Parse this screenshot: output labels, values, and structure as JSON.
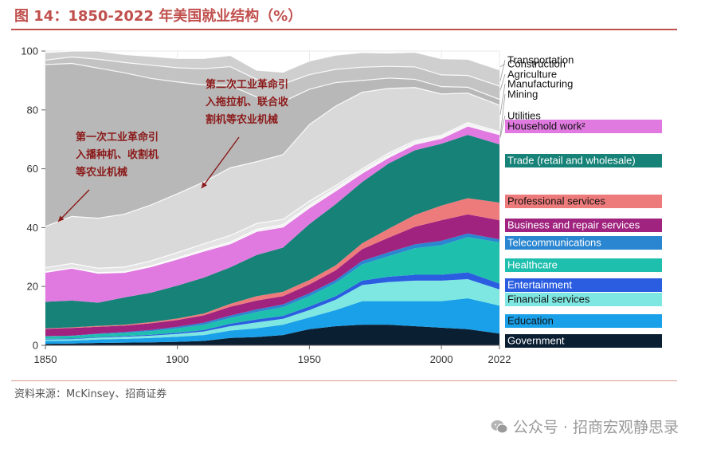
{
  "header": {
    "figure_title": "图 14：1850-2022 年美国就业结构（%）"
  },
  "footer": {
    "source": "资料来源：McKinsey、招商证券",
    "watermark": "公众号 · 招商宏观静思录"
  },
  "chart_data": {
    "type": "area",
    "stacked": true,
    "x": [
      1850,
      1860,
      1870,
      1880,
      1890,
      1900,
      1910,
      1920,
      1930,
      1940,
      1950,
      1960,
      1970,
      1980,
      1990,
      2000,
      2010,
      2022
    ],
    "xticks": [
      "1850",
      "1900",
      "1950",
      "2000",
      "2022"
    ],
    "ylim": [
      0,
      100
    ],
    "yticks": [
      "0",
      "20",
      "40",
      "60",
      "80",
      "100"
    ],
    "grid": true,
    "legend": "right",
    "series": [
      {
        "name": "Government",
        "color": "#0b1f33",
        "values": [
          0.5,
          0.6,
          0.8,
          0.9,
          1.0,
          1.2,
          1.5,
          2.5,
          2.8,
          3.5,
          5.5,
          6.5,
          7.0,
          7.0,
          6.5,
          6.0,
          5.5,
          4.0
        ]
      },
      {
        "name": "Education",
        "color": "#1aa0e8",
        "values": [
          1.0,
          1.0,
          1.2,
          1.3,
          1.5,
          1.7,
          2.0,
          2.5,
          3.0,
          3.5,
          4.0,
          5.5,
          8.0,
          8.0,
          8.5,
          9.0,
          10.5,
          9.5
        ]
      },
      {
        "name": "Financial services",
        "color": "#7ee7e2",
        "values": [
          0.5,
          0.5,
          0.6,
          0.7,
          0.8,
          1.0,
          1.2,
          1.5,
          2.0,
          2.0,
          2.5,
          3.5,
          5.5,
          6.5,
          7.0,
          7.0,
          6.5,
          5.5
        ]
      },
      {
        "name": "Entertainment",
        "color": "#2a5de0",
        "values": [
          0.2,
          0.2,
          0.2,
          0.3,
          0.3,
          0.4,
          0.5,
          0.8,
          1.0,
          1.0,
          1.2,
          1.2,
          1.5,
          1.8,
          2.0,
          2.0,
          2.3,
          2.0
        ]
      },
      {
        "name": "Healthcare",
        "color": "#1fbfae",
        "values": [
          0.8,
          0.9,
          1.0,
          1.0,
          1.2,
          1.5,
          1.8,
          2.0,
          2.5,
          3.0,
          3.5,
          4.5,
          5.5,
          7.0,
          9.0,
          10.0,
          12.0,
          14.0
        ]
      },
      {
        "name": "Telecommunications",
        "color": "#2a86d1",
        "values": [
          0.1,
          0.1,
          0.2,
          0.3,
          0.4,
          0.5,
          0.7,
          0.8,
          0.9,
          0.9,
          1.0,
          1.0,
          1.2,
          1.3,
          1.3,
          1.5,
          1.2,
          1.0
        ]
      },
      {
        "name": "Business and repair services",
        "color": "#a0247f",
        "values": [
          2.5,
          2.6,
          2.3,
          2.2,
          2.3,
          2.3,
          2.5,
          3.0,
          3.0,
          2.8,
          3.0,
          3.3,
          4.0,
          5.0,
          6.0,
          7.0,
          6.5,
          6.5
        ]
      },
      {
        "name": "Professional services",
        "color": "#ee7b7b",
        "values": [
          0.2,
          0.2,
          0.3,
          0.3,
          0.4,
          0.5,
          0.6,
          1.0,
          1.5,
          1.5,
          1.5,
          1.7,
          2.0,
          3.0,
          4.0,
          5.0,
          5.5,
          6.0
        ]
      },
      {
        "name": "Trade (retail and wholesale)",
        "color": "#178277",
        "values": [
          9.0,
          9.1,
          7.9,
          9.3,
          10.0,
          11.2,
          12.2,
          12.4,
          14.0,
          15.0,
          19.0,
          20.8,
          20.8,
          22.2,
          22.0,
          21.0,
          21.5,
          19.8
        ]
      },
      {
        "name": "Household work²",
        "color": "#e07ae0",
        "values": [
          10.0,
          11.0,
          10.0,
          8.5,
          8.8,
          9.0,
          9.0,
          8.0,
          8.0,
          7.0,
          5.5,
          4.5,
          3.0,
          2.0,
          2.0,
          1.8,
          3.0,
          3.3
        ]
      },
      {
        "name": "Utilities",
        "color": "#eeeeee",
        "values": [
          0.1,
          0.1,
          0.2,
          0.2,
          0.3,
          0.4,
          0.5,
          0.6,
          0.7,
          0.8,
          0.8,
          0.8,
          0.7,
          0.7,
          0.7,
          0.6,
          0.6,
          0.5
        ]
      },
      {
        "name": "Mining",
        "color": "#e4e4e4",
        "values": [
          1.5,
          1.5,
          1.5,
          1.6,
          1.7,
          1.8,
          2.0,
          2.2,
          2.0,
          1.8,
          1.5,
          1.0,
          0.8,
          0.8,
          0.6,
          0.5,
          0.6,
          0.5
        ]
      },
      {
        "name": "Manufacturing",
        "color": "#d9d9d9",
        "values": [
          14.0,
          16.0,
          17.0,
          18.0,
          19.0,
          20.0,
          21.0,
          23.0,
          21.0,
          22.0,
          26.0,
          27.0,
          26.0,
          22.0,
          18.0,
          14.0,
          10.0,
          9.0
        ]
      },
      {
        "name": "Agriculture",
        "color": "#b8b8b8",
        "values": [
          55.0,
          52.0,
          51.0,
          48.0,
          43.0,
          38.0,
          33.0,
          28.0,
          22.0,
          18.0,
          12.0,
          8.0,
          4.0,
          3.5,
          2.8,
          2.5,
          2.0,
          2.0
        ]
      },
      {
        "name": "Transportation",
        "color": "#c3c3c3",
        "values": [
          1.5,
          2.2,
          3.0,
          3.5,
          4.5,
          4.8,
          5.5,
          6.4,
          6.0,
          6.0,
          5.0,
          4.5,
          4.5,
          4.0,
          4.2,
          4.0,
          4.0,
          4.5
        ]
      },
      {
        "name": "Construction",
        "color": "#cfcfcf",
        "values": [
          2.6,
          2.0,
          2.8,
          2.7,
          3.0,
          3.2,
          3.5,
          3.8,
          3.1,
          4.0,
          4.6,
          4.8,
          5.0,
          4.5,
          5.0,
          5.5,
          5.5,
          5.5
        ]
      }
    ],
    "annotations": [
      {
        "text": [
          "第一次工业革命引",
          "入播种机、收割机",
          "等农业机械"
        ],
        "x": 1850,
        "y": 41
      },
      {
        "text": [
          "第二次工业革命引",
          "入拖拉机、联合收",
          "割机等农业机械"
        ],
        "x": 1910,
        "y": 53
      }
    ]
  }
}
